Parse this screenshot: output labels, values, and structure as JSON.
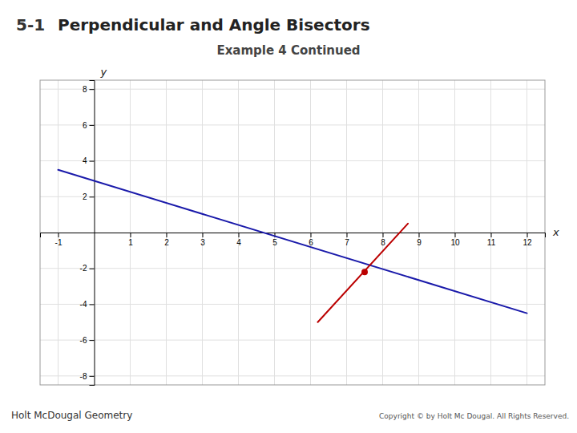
{
  "chart_data": {
    "type": "line",
    "title": "Perpendicular and Angle Bisectors",
    "badge": "5-1",
    "subtitle": "Example 4 Continued",
    "footer": "Holt McDougal Geometry",
    "copyright": "Copyright © by Holt Mc Dougal. All Rights Reserved.",
    "xlabel": "x",
    "ylabel": "y",
    "xlim": [
      -1.5,
      12.5
    ],
    "ylim": [
      -8.5,
      8.5
    ],
    "xticks": [
      -1,
      1,
      2,
      3,
      4,
      5,
      6,
      7,
      8,
      9,
      10,
      11,
      12
    ],
    "yticks": [
      -8,
      -6,
      -4,
      -2,
      2,
      4,
      6,
      8
    ],
    "grid": true,
    "series": [
      {
        "type": "line",
        "color": "#1a1aaa",
        "x": [
          -1,
          12
        ],
        "values": [
          3.5,
          -4.5
        ]
      },
      {
        "type": "line",
        "color": "#bb0000",
        "x": [
          6.2,
          8.7
        ],
        "values": [
          -5.0,
          0.5
        ]
      },
      {
        "type": "scatter",
        "color": "#bb0000",
        "x": [
          7.5
        ],
        "values": [
          -2.2
        ]
      }
    ]
  }
}
